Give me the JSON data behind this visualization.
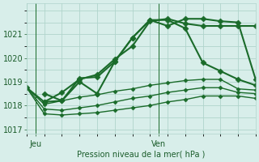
{
  "bg_color": "#d8eeea",
  "grid_color": "#b0d4cc",
  "line_color": "#1a6b2a",
  "tick_label_color": "#1a5c2a",
  "xlabel": "Pression niveau de la mer( hPa )",
  "ylim": [
    1016.8,
    1022.3
  ],
  "yticks": [
    1017,
    1018,
    1019,
    1020,
    1021
  ],
  "xlim": [
    0,
    13
  ],
  "x_jeu": 0.5,
  "x_ven": 7.5,
  "series": [
    {
      "x": [
        0,
        1,
        2,
        3,
        4,
        5,
        6,
        7,
        8,
        9,
        10,
        11,
        12,
        13
      ],
      "y": [
        1018.75,
        1018.15,
        1018.55,
        1019.1,
        1019.3,
        1019.95,
        1020.5,
        1021.55,
        1021.65,
        1021.45,
        1021.35,
        1021.35,
        1021.35,
        1021.35
      ],
      "lw": 1.5,
      "ms": 3.5
    },
    {
      "x": [
        1,
        2,
        3,
        4,
        5,
        6,
        7,
        8,
        9,
        10,
        11,
        12,
        13
      ],
      "y": [
        1018.5,
        1018.2,
        1019.15,
        1019.2,
        1019.85,
        1020.85,
        1021.6,
        1021.35,
        1021.65,
        1021.65,
        1021.55,
        1021.5,
        1019.1
      ],
      "lw": 1.5,
      "ms": 3.5
    },
    {
      "x": [
        1,
        2,
        3,
        4,
        5,
        6,
        7,
        8,
        9,
        10,
        11,
        12,
        13
      ],
      "y": [
        1018.15,
        1018.2,
        1019.0,
        1018.5,
        1019.85,
        1020.85,
        1021.6,
        1021.6,
        1021.25,
        1019.8,
        1019.45,
        1019.1,
        1018.85
      ],
      "lw": 1.5,
      "ms": 3.5
    },
    {
      "x": [
        0,
        1,
        2,
        3,
        4,
        5,
        6,
        7,
        8,
        9,
        10,
        11,
        12,
        13
      ],
      "y": [
        1018.75,
        1018.05,
        1018.2,
        1018.35,
        1018.45,
        1018.6,
        1018.7,
        1018.85,
        1018.95,
        1019.05,
        1019.1,
        1019.1,
        1018.7,
        1018.65
      ],
      "lw": 1.0,
      "ms": 2.5
    },
    {
      "x": [
        0,
        1,
        2,
        3,
        4,
        5,
        6,
        7,
        8,
        9,
        10,
        11,
        12,
        13
      ],
      "y": [
        1018.75,
        1017.85,
        1017.8,
        1017.9,
        1018.0,
        1018.15,
        1018.3,
        1018.4,
        1018.55,
        1018.65,
        1018.75,
        1018.75,
        1018.55,
        1018.5
      ],
      "lw": 1.0,
      "ms": 2.5
    },
    {
      "x": [
        0,
        1,
        2,
        3,
        4,
        5,
        6,
        7,
        8,
        9,
        10,
        11,
        12,
        13
      ],
      "y": [
        1018.75,
        1017.65,
        1017.6,
        1017.65,
        1017.7,
        1017.8,
        1017.9,
        1018.0,
        1018.15,
        1018.25,
        1018.4,
        1018.4,
        1018.4,
        1018.3
      ],
      "lw": 1.0,
      "ms": 2.5
    }
  ]
}
